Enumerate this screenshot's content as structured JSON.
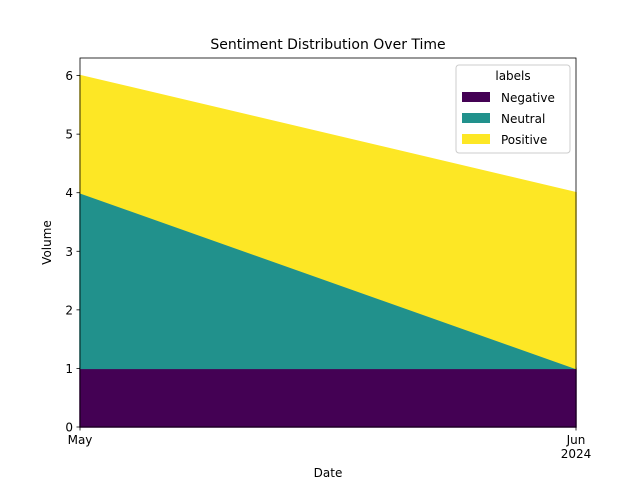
{
  "chart_data": {
    "type": "area",
    "stacked": true,
    "title": "Sentiment Distribution Over Time",
    "xlabel": "Date",
    "ylabel": "Volume",
    "x": [
      "2024-05",
      "2024-06"
    ],
    "x_tick_labels": [
      [
        "May"
      ],
      [
        "Jun",
        "2024"
      ]
    ],
    "ylim": [
      0,
      6.3
    ],
    "yticks": [
      "0",
      "1",
      "2",
      "3",
      "4",
      "5",
      "6"
    ],
    "grid": false,
    "legend": {
      "title": "labels",
      "placement": "top-right"
    },
    "series": [
      {
        "name": "Negative",
        "values": [
          1,
          1
        ],
        "color": "#440154"
      },
      {
        "name": "Neutral",
        "values": [
          3,
          0
        ],
        "color": "#21918c"
      },
      {
        "name": "Positive",
        "values": [
          2,
          3
        ],
        "color": "#fde725"
      }
    ]
  }
}
